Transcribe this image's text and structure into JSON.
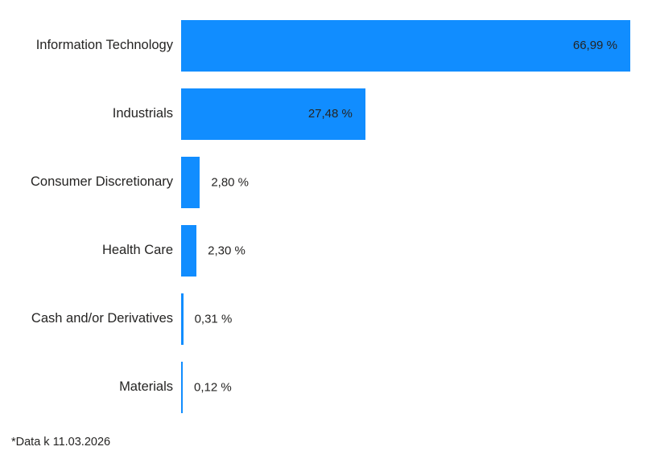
{
  "chart_data": {
    "type": "bar",
    "orientation": "horizontal",
    "categories": [
      "Information Technology",
      "Industrials",
      "Consumer Discretionary",
      "Health Care",
      "Cash and/or Derivatives",
      "Materials"
    ],
    "values": [
      66.99,
      27.48,
      2.8,
      2.3,
      0.31,
      0.12
    ],
    "value_labels": [
      "66,99 %",
      "27,48 %",
      "2,80 %",
      "2,30 %",
      "0,31 %",
      "0,12 %"
    ],
    "title": "",
    "xlabel": "",
    "ylabel": "",
    "xlim": [
      0,
      67
    ],
    "grid": false,
    "legend": "none",
    "bar_color": "#118DFF",
    "label_color": "#252423"
  },
  "footer": {
    "note": "*Data k 11.03.2026"
  }
}
